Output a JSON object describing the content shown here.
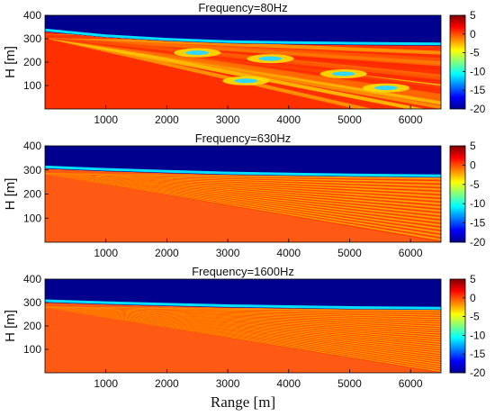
{
  "chart_data": [
    {
      "type": "heatmap",
      "title": "Frequency=80Hz",
      "xlabel": "",
      "ylabel": "H [m]",
      "xlim": [
        0,
        6500
      ],
      "ylim": [
        0,
        400
      ],
      "x_ticks": [
        1000,
        2000,
        3000,
        4000,
        5000,
        6000
      ],
      "y_ticks": [
        100,
        200,
        300,
        400
      ],
      "colorbar": {
        "range": [
          -20,
          5
        ],
        "ticks": [
          5,
          0,
          -5,
          -10,
          -15,
          -20
        ],
        "colormap": "jet"
      },
      "surface_depth": [
        [
          0,
          330
        ],
        [
          1000,
          305
        ],
        [
          2000,
          290
        ],
        [
          3000,
          280
        ],
        [
          4000,
          276
        ],
        [
          5000,
          273
        ],
        [
          6500,
          270
        ]
      ],
      "background_color": "#00008f"
    },
    {
      "type": "heatmap",
      "title": "Frequency=630Hz",
      "xlabel": "",
      "ylabel": "H [m]",
      "xlim": [
        0,
        6500
      ],
      "ylim": [
        0,
        400
      ],
      "x_ticks": [
        1000,
        2000,
        3000,
        4000,
        5000,
        6000
      ],
      "y_ticks": [
        100,
        200,
        300,
        400
      ],
      "colorbar": {
        "range": [
          -20,
          5
        ],
        "ticks": [
          5,
          0,
          -5,
          -10,
          -15,
          -20
        ],
        "colormap": "jet"
      },
      "surface_depth": [
        [
          0,
          305
        ],
        [
          1000,
          295
        ],
        [
          2000,
          287
        ],
        [
          3000,
          280
        ],
        [
          4000,
          276
        ],
        [
          5000,
          272
        ],
        [
          6500,
          268
        ]
      ],
      "background_color": "#00008f"
    },
    {
      "type": "heatmap",
      "title": "Frequency=1600Hz",
      "xlabel": "Range [m]",
      "ylabel": "H [m]",
      "xlim": [
        0,
        6500
      ],
      "ylim": [
        0,
        400
      ],
      "x_ticks": [
        1000,
        2000,
        3000,
        4000,
        5000,
        6000
      ],
      "y_ticks": [
        100,
        200,
        300,
        400
      ],
      "colorbar": {
        "range": [
          -20,
          5
        ],
        "ticks": [
          5,
          0,
          -5,
          -10,
          -15,
          -20
        ],
        "colormap": "jet"
      },
      "surface_depth": [
        [
          0,
          300
        ],
        [
          1000,
          292
        ],
        [
          2000,
          285
        ],
        [
          3000,
          279
        ],
        [
          4000,
          275
        ],
        [
          5000,
          271
        ],
        [
          6500,
          268
        ]
      ],
      "background_color": "#00008f"
    }
  ]
}
